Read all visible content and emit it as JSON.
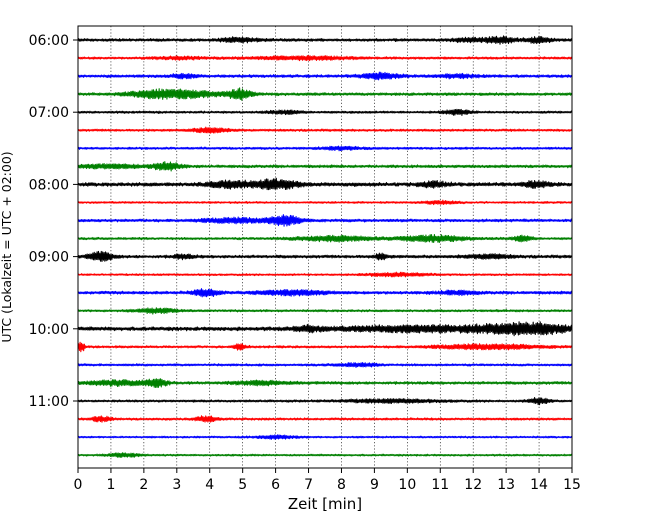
{
  "chart_data": {
    "type": "line",
    "title": "",
    "xlabel": "Zeit  [min]",
    "ylabel": "UTC (Lokalzeit = UTC + 02:00)",
    "xlim": [
      0,
      15
    ],
    "x_ticks": [
      "0",
      "1",
      "2",
      "3",
      "4",
      "5",
      "6",
      "7",
      "8",
      "9",
      "10",
      "11",
      "12",
      "13",
      "14",
      "15"
    ],
    "y_ticks": [
      {
        "label": "06:00",
        "row": 0
      },
      {
        "label": "07:00",
        "row": 4
      },
      {
        "label": "08:00",
        "row": 8
      },
      {
        "label": "09:00",
        "row": 12
      },
      {
        "label": "10:00",
        "row": 16
      },
      {
        "label": "11:00",
        "row": 20
      }
    ],
    "grid": "vertical dotted at each minute",
    "trace_minutes": 15,
    "rows_start": "06:00",
    "row_colors": [
      "#000000",
      "#ff0000",
      "#0000ff",
      "#008000"
    ],
    "series": [
      {
        "start": "06:00",
        "color": "#000000",
        "base": 1.5,
        "bursts": [
          [
            4.9,
            0.6,
            2
          ],
          [
            12.8,
            0.5,
            3
          ],
          [
            14.0,
            0.4,
            2.5
          ],
          [
            11.8,
            0.5,
            1.5
          ]
        ]
      },
      {
        "start": "06:15",
        "color": "#ff0000",
        "base": 1.2,
        "bursts": [
          [
            6.8,
            1.5,
            1.6
          ],
          [
            3.1,
            0.8,
            1.2
          ]
        ]
      },
      {
        "start": "06:30",
        "color": "#0000ff",
        "base": 1.5,
        "bursts": [
          [
            9.2,
            0.6,
            2.6
          ],
          [
            3.2,
            0.4,
            1.8
          ],
          [
            11.5,
            0.6,
            1.6
          ]
        ]
      },
      {
        "start": "06:45",
        "color": "#008000",
        "base": 1.5,
        "bursts": [
          [
            3.2,
            1.1,
            3.4
          ],
          [
            4.9,
            0.35,
            4.8
          ],
          [
            2.2,
            0.8,
            2.2
          ]
        ]
      },
      {
        "start": "07:00",
        "color": "#000000",
        "base": 1.2,
        "bursts": [
          [
            11.5,
            0.4,
            2.4
          ],
          [
            6.3,
            0.5,
            1.5
          ]
        ]
      },
      {
        "start": "07:15",
        "color": "#ff0000",
        "base": 1.2,
        "bursts": [
          [
            4.0,
            0.5,
            2.4
          ]
        ]
      },
      {
        "start": "07:30",
        "color": "#0000ff",
        "base": 1.2,
        "bursts": [
          [
            8.0,
            0.6,
            1.5
          ]
        ]
      },
      {
        "start": "07:45",
        "color": "#008000",
        "base": 1.5,
        "bursts": [
          [
            2.7,
            0.4,
            4.0
          ],
          [
            1.0,
            1.0,
            1.8
          ]
        ]
      },
      {
        "start": "08:00",
        "color": "#000000",
        "base": 2.0,
        "bursts": [
          [
            4.6,
            0.6,
            3.2
          ],
          [
            6.0,
            0.7,
            4.2
          ],
          [
            10.8,
            0.4,
            2.3
          ],
          [
            13.9,
            0.4,
            2.5
          ]
        ]
      },
      {
        "start": "08:15",
        "color": "#ff0000",
        "base": 1.0,
        "bursts": [
          [
            11.0,
            0.5,
            1.5
          ]
        ]
      },
      {
        "start": "08:30",
        "color": "#0000ff",
        "base": 1.5,
        "bursts": [
          [
            6.3,
            0.5,
            4.6
          ],
          [
            4.8,
            1.0,
            2.2
          ]
        ]
      },
      {
        "start": "08:45",
        "color": "#008000",
        "base": 1.2,
        "bursts": [
          [
            7.8,
            1.2,
            2.5
          ],
          [
            10.8,
            1.0,
            3.0
          ],
          [
            13.5,
            0.3,
            2.5
          ]
        ]
      },
      {
        "start": "09:00",
        "color": "#000000",
        "base": 1.6,
        "bursts": [
          [
            0.7,
            0.35,
            4.4
          ],
          [
            9.2,
            0.2,
            2.4
          ],
          [
            3.2,
            0.3,
            2.0
          ],
          [
            12.5,
            0.6,
            1.8
          ]
        ]
      },
      {
        "start": "09:15",
        "color": "#ff0000",
        "base": 1.0,
        "bursts": [
          [
            9.7,
            0.9,
            1.6
          ]
        ]
      },
      {
        "start": "09:30",
        "color": "#0000ff",
        "base": 1.6,
        "bursts": [
          [
            3.9,
            0.4,
            3.2
          ],
          [
            6.5,
            1.0,
            2.2
          ],
          [
            11.5,
            0.6,
            1.6
          ]
        ]
      },
      {
        "start": "09:45",
        "color": "#008000",
        "base": 1.2,
        "bursts": [
          [
            2.4,
            0.6,
            2.2
          ]
        ]
      },
      {
        "start": "10:00",
        "color": "#000000",
        "base": 2.0,
        "bursts": [
          [
            10.3,
            2.3,
            2.8
          ],
          [
            13.6,
            1.3,
            5.5
          ],
          [
            7.0,
            0.4,
            2.4
          ]
        ]
      },
      {
        "start": "10:15",
        "color": "#ff0000",
        "base": 1.2,
        "bursts": [
          [
            0.1,
            0.1,
            5.0
          ],
          [
            12.5,
            1.6,
            2.4
          ],
          [
            4.9,
            0.2,
            2.5
          ]
        ]
      },
      {
        "start": "10:30",
        "color": "#0000ff",
        "base": 1.2,
        "bursts": [
          [
            8.5,
            0.6,
            1.5
          ]
        ]
      },
      {
        "start": "10:45",
        "color": "#008000",
        "base": 1.5,
        "bursts": [
          [
            1.2,
            0.9,
            2.4
          ],
          [
            2.4,
            0.3,
            3.4
          ],
          [
            5.6,
            0.8,
            1.8
          ]
        ]
      },
      {
        "start": "11:00",
        "color": "#000000",
        "base": 1.2,
        "bursts": [
          [
            14.0,
            0.3,
            3.0
          ],
          [
            9.5,
            1.5,
            1.5
          ]
        ]
      },
      {
        "start": "11:15",
        "color": "#ff0000",
        "base": 1.2,
        "bursts": [
          [
            3.9,
            0.3,
            2.8
          ],
          [
            0.7,
            0.3,
            2.4
          ]
        ]
      },
      {
        "start": "11:30",
        "color": "#0000ff",
        "base": 1.0,
        "bursts": [
          [
            6.0,
            0.6,
            1.5
          ]
        ]
      },
      {
        "start": "11:45",
        "color": "#008000",
        "base": 1.0,
        "bursts": [
          [
            1.4,
            0.5,
            1.8
          ]
        ]
      }
    ]
  }
}
